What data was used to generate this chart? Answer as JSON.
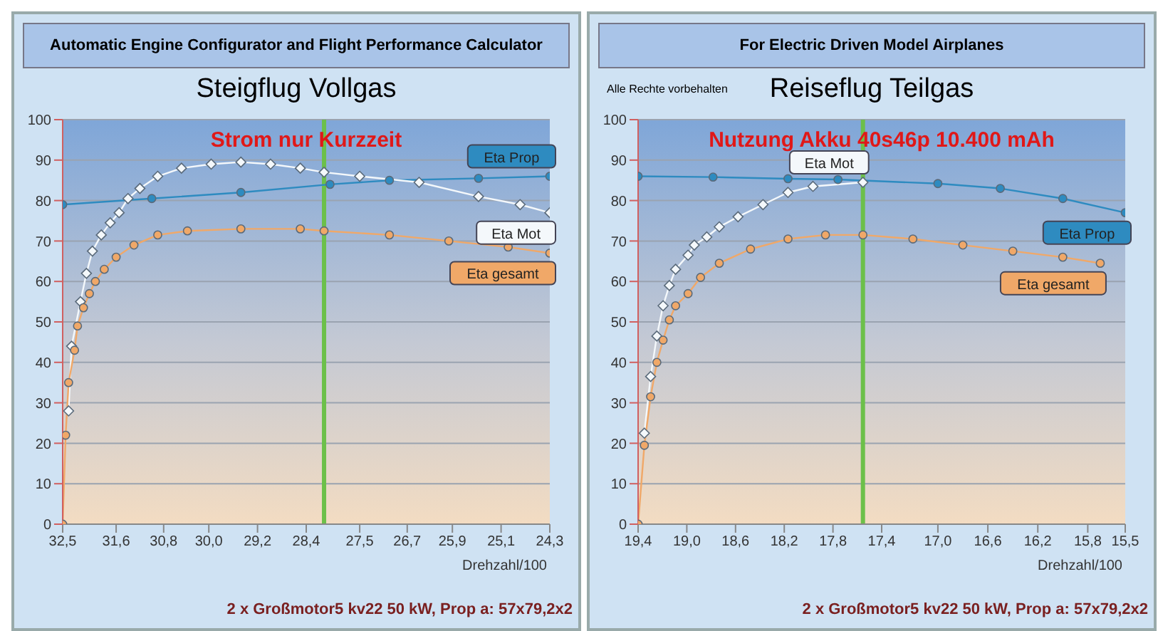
{
  "chart_data": [
    {
      "type": "line",
      "title": "Steigflug Vollgas",
      "subtitle": "Automatic Engine Configurator and Flight Performance Calculator",
      "xlabel": "Drehzahl/100",
      "annotations": [
        "Strom nur Kurzzeit",
        "2 x Großmotor5  kv22  50 kW,  Prop  a: 57x79,2x2"
      ],
      "xlim": [
        32.5,
        24.3
      ],
      "xticks": [
        {
          "value": 32.5,
          "label": "32,5"
        },
        {
          "value": 31.6,
          "label": "31,6"
        },
        {
          "value": 30.8,
          "label": "30,8"
        },
        {
          "value": 30.04,
          "label": "30,0"
        },
        {
          "value": 29.22,
          "label": "29,2"
        },
        {
          "value": 28.4,
          "label": "28,4"
        },
        {
          "value": 27.5,
          "label": "27,5"
        },
        {
          "value": 26.7,
          "label": "26,7"
        },
        {
          "value": 25.94,
          "label": "25,9"
        },
        {
          "value": 25.12,
          "label": "25,1"
        },
        {
          "value": 24.3,
          "label": "24,3"
        }
      ],
      "ylim": [
        0,
        100
      ],
      "yticks": [
        0,
        10,
        20,
        30,
        40,
        50,
        60,
        70,
        80,
        90,
        100
      ],
      "grid": "y",
      "legend": false,
      "ref_lines": [
        {
          "axis": "x",
          "value": 28.1,
          "color": "#6cc04a"
        }
      ],
      "series": [
        {
          "name": "Eta Prop",
          "color": "#2e8bc0",
          "marker": "circle",
          "x": [
            32.5,
            31,
            29.5,
            28,
            27,
            25.5,
            24.3
          ],
          "values": [
            79,
            80.5,
            82,
            84,
            85,
            85.5,
            86
          ]
        },
        {
          "name": "Eta Mot",
          "color": "#f4f8fb",
          "marker": "diamond",
          "x": [
            32.4,
            32.35,
            32.2,
            32.1,
            32.0,
            31.85,
            31.7,
            31.55,
            31.4,
            31.2,
            30.9,
            30.5,
            30.0,
            29.5,
            29.0,
            28.5,
            28.1,
            27.5,
            26.5,
            25.5,
            24.8,
            24.3
          ],
          "values": [
            28,
            44,
            55,
            62,
            67.5,
            71.5,
            74.5,
            77,
            80.5,
            83,
            86,
            88,
            89,
            89.5,
            89,
            88,
            87,
            86,
            84.5,
            81,
            79,
            77
          ]
        },
        {
          "name": "Eta gesamt",
          "color": "#f0a868",
          "marker": "circle",
          "x": [
            32.5,
            32.45,
            32.4,
            32.3,
            32.25,
            32.15,
            32.05,
            31.95,
            31.8,
            31.6,
            31.3,
            30.9,
            30.4,
            29.5,
            28.5,
            28.1,
            27,
            26,
            25,
            24.3
          ],
          "values": [
            0,
            22,
            35,
            43,
            49,
            53.5,
            57,
            60,
            63,
            66,
            69,
            71.5,
            72.5,
            73,
            73,
            72.5,
            71.5,
            70,
            68.5,
            67
          ]
        }
      ]
    },
    {
      "type": "line",
      "title": "Reiseflug Teilgas",
      "subtitle": "For Electric Driven Model Airplanes",
      "xlabel": "Drehzahl/100",
      "annotations": [
        "Alle Rechte vorbehalten",
        "Nutzung Akku 40s46p 10.400 mAh",
        "2 x Großmotor5  kv22  50 kW,  Prop  a: 57x79,2x2"
      ],
      "xlim": [
        19.4,
        15.5
      ],
      "xticks": [
        {
          "value": 19.4,
          "label": "19,4"
        },
        {
          "value": 19.01,
          "label": "19,0"
        },
        {
          "value": 18.62,
          "label": "18,6"
        },
        {
          "value": 18.23,
          "label": "18,2"
        },
        {
          "value": 17.84,
          "label": "17,8"
        },
        {
          "value": 17.45,
          "label": "17,4"
        },
        {
          "value": 17.0,
          "label": "17,0"
        },
        {
          "value": 16.6,
          "label": "16,6"
        },
        {
          "value": 16.2,
          "label": "16,2"
        },
        {
          "value": 15.8,
          "label": "15,8"
        },
        {
          "value": 15.5,
          "label": "15,5"
        }
      ],
      "ylim": [
        0,
        100
      ],
      "yticks": [
        0,
        10,
        20,
        30,
        40,
        50,
        60,
        70,
        80,
        90,
        100
      ],
      "grid": "y",
      "legend": false,
      "ref_lines": [
        {
          "axis": "x",
          "value": 17.6,
          "color": "#6cc04a"
        }
      ],
      "series": [
        {
          "name": "Eta Prop",
          "color": "#2e8bc0",
          "marker": "circle",
          "x": [
            19.4,
            18.8,
            18.2,
            17.8,
            17.0,
            16.5,
            16.0,
            15.5
          ],
          "values": [
            86,
            85.8,
            85.4,
            85.2,
            84.2,
            83,
            80.5,
            77
          ]
        },
        {
          "name": "Eta Mot",
          "color": "#f4f8fb",
          "marker": "diamond",
          "x": [
            19.35,
            19.3,
            19.25,
            19.2,
            19.15,
            19.1,
            19.0,
            18.95,
            18.85,
            18.75,
            18.6,
            18.4,
            18.2,
            18.0,
            17.6
          ],
          "values": [
            22.5,
            36.5,
            46.5,
            54,
            59,
            63,
            66.5,
            69,
            71,
            73.5,
            76,
            79,
            82,
            83.5,
            84.5
          ]
        },
        {
          "name": "Eta gesamt",
          "color": "#f0a868",
          "marker": "circle",
          "x": [
            19.4,
            19.35,
            19.3,
            19.25,
            19.2,
            19.15,
            19.1,
            19.0,
            18.9,
            18.75,
            18.5,
            18.2,
            17.9,
            17.6,
            17.2,
            16.8,
            16.4,
            16.0,
            15.7
          ],
          "values": [
            0,
            19.5,
            31.5,
            40,
            45.5,
            50.5,
            54,
            57,
            61,
            64.5,
            68,
            70.5,
            71.5,
            71.5,
            70.5,
            69,
            67.5,
            66,
            64.5
          ]
        }
      ]
    }
  ]
}
